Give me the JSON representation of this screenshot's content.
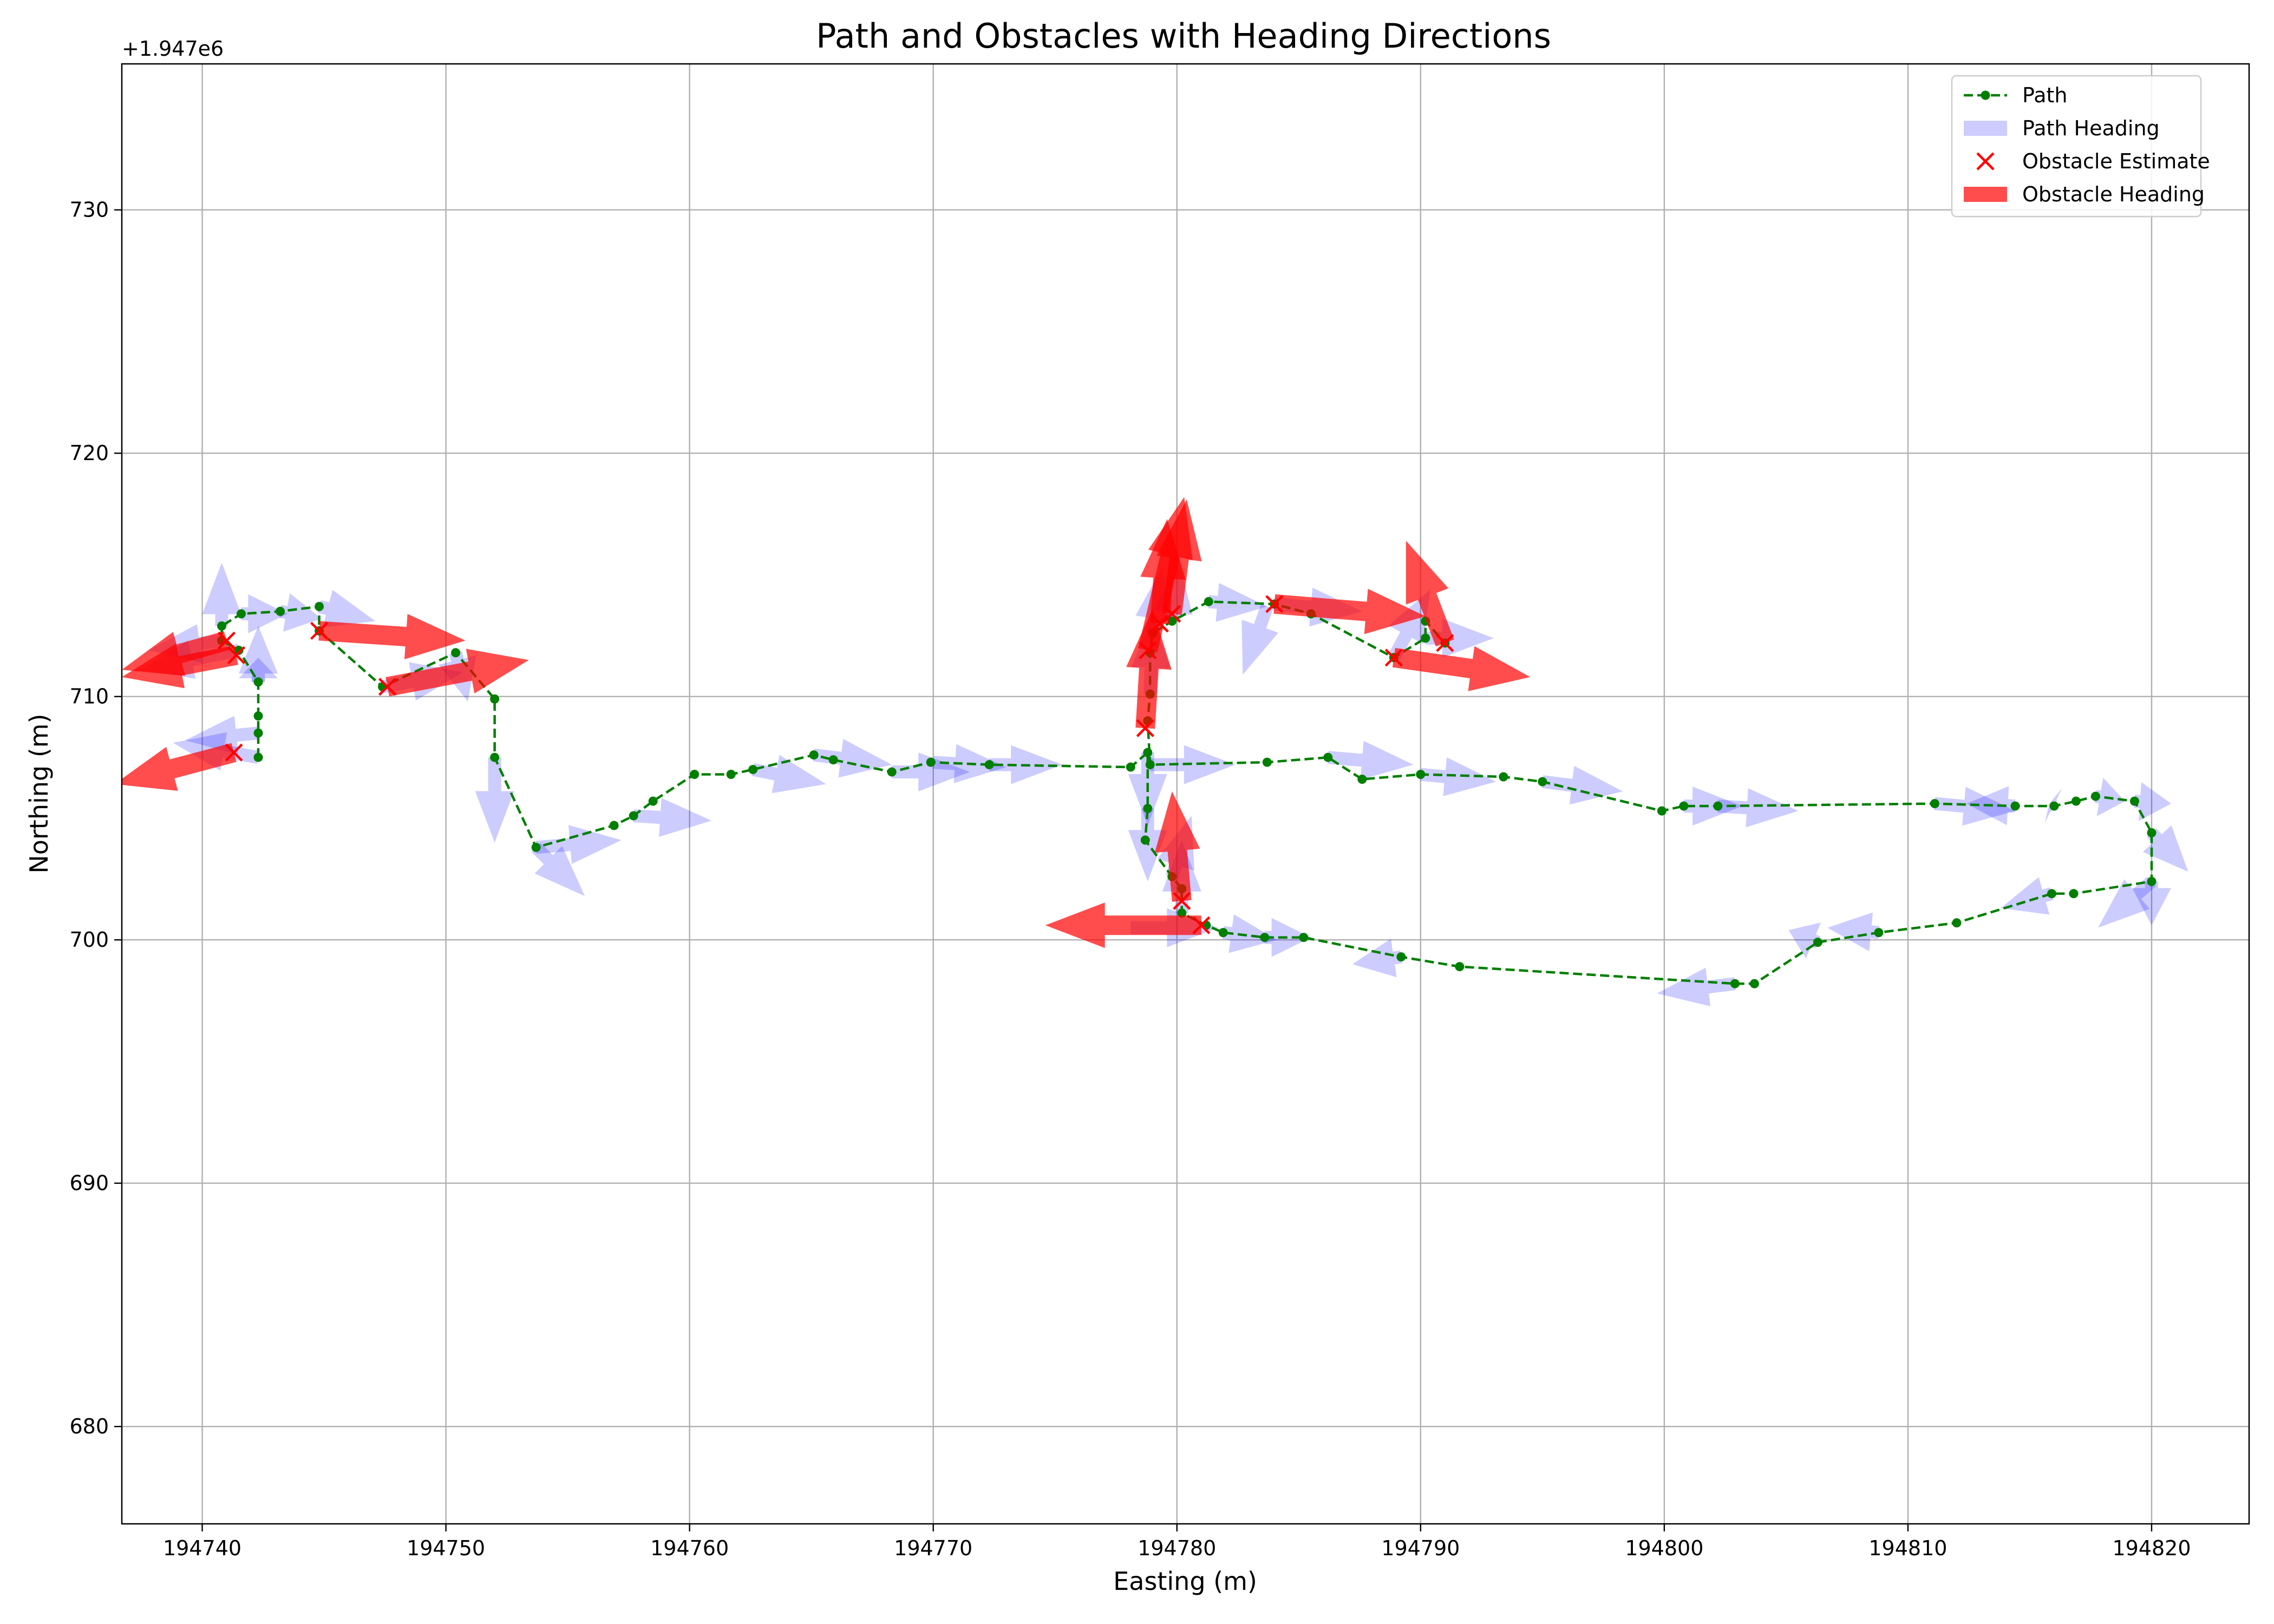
{
  "chart_data": {
    "type": "line",
    "title": "Path and Obstacles with Heading Directions",
    "xlabel": "Easting (m)",
    "ylabel": "Northing (m)",
    "y_offset_label": "+1.947e6",
    "xlim": [
      194736.7,
      194824
    ],
    "ylim": [
      676,
      736
    ],
    "x_ticks": [
      194740,
      194750,
      194760,
      194770,
      194780,
      194790,
      194800,
      194810,
      194820
    ],
    "x_tick_labels": [
      "194740",
      "194750",
      "194760",
      "194770",
      "194780",
      "194790",
      "194800",
      "194810",
      "194820"
    ],
    "y_ticks": [
      680,
      690,
      700,
      710,
      720,
      730
    ],
    "y_tick_labels": [
      "680",
      "690",
      "700",
      "710",
      "720",
      "730"
    ],
    "grid": true,
    "legend_position": "top-right",
    "legend": [
      {
        "label": "Path",
        "kind": "line-marker",
        "color": "#007f00"
      },
      {
        "label": "Path Heading",
        "kind": "patch",
        "color": "#ccccff"
      },
      {
        "label": "Obstacle Estimate",
        "kind": "x-marker",
        "color": "#ff0000"
      },
      {
        "label": "Obstacle Heading",
        "kind": "patch",
        "color": "#ff4d4d"
      }
    ],
    "series": [
      {
        "name": "Path",
        "color": "#007f00",
        "points": [
          [
            194742.3,
            707.5
          ],
          [
            194742.3,
            708.5
          ],
          [
            194742.3,
            709.2
          ],
          [
            194742.3,
            710.6
          ],
          [
            194741.5,
            711.9
          ],
          [
            194740.8,
            712.3
          ],
          [
            194740.8,
            712.9
          ],
          [
            194741.6,
            713.4
          ],
          [
            194743.2,
            713.5
          ],
          [
            194744.8,
            713.7
          ],
          [
            194744.8,
            712.7
          ],
          [
            194747.4,
            710.4
          ],
          [
            194750.4,
            711.8
          ],
          [
            194752.0,
            709.9
          ],
          [
            194752.0,
            707.5
          ],
          [
            194753.7,
            703.8
          ],
          [
            194756.9,
            704.7
          ],
          [
            194757.7,
            705.1
          ],
          [
            194758.5,
            705.7
          ],
          [
            194760.2,
            706.8
          ],
          [
            194761.7,
            706.8
          ],
          [
            194762.6,
            707.0
          ],
          [
            194765.1,
            707.6
          ],
          [
            194765.9,
            707.4
          ],
          [
            194768.3,
            706.9
          ],
          [
            194769.9,
            707.3
          ],
          [
            194772.3,
            707.2
          ],
          [
            194778.1,
            707.1
          ],
          [
            194778.8,
            707.7
          ],
          [
            194778.8,
            705.4
          ],
          [
            194778.7,
            704.1
          ],
          [
            194779.8,
            702.6
          ],
          [
            194780.2,
            702.1
          ],
          [
            194780.2,
            701.1
          ],
          [
            194781.2,
            700.6
          ],
          [
            194781.9,
            700.3
          ],
          [
            194783.6,
            700.1
          ],
          [
            194785.2,
            700.1
          ],
          [
            194789.2,
            699.3
          ],
          [
            194791.6,
            698.9
          ],
          [
            194802.9,
            698.2
          ],
          [
            194803.7,
            698.2
          ],
          [
            194806.3,
            699.9
          ],
          [
            194808.8,
            700.3
          ],
          [
            194812.0,
            700.7
          ],
          [
            194815.9,
            701.9
          ],
          [
            194816.8,
            701.9
          ],
          [
            194820.0,
            702.4
          ],
          [
            194820.0,
            704.4
          ],
          [
            194819.3,
            705.7
          ],
          [
            194817.7,
            705.9
          ],
          [
            194816.9,
            705.7
          ],
          [
            194816.0,
            705.5
          ],
          [
            194814.4,
            705.5
          ],
          [
            194811.1,
            705.6
          ],
          [
            194802.2,
            705.5
          ],
          [
            194800.8,
            705.5
          ],
          [
            194799.9,
            705.3
          ],
          [
            194795.0,
            706.5
          ],
          [
            194793.4,
            706.7
          ],
          [
            194790.0,
            706.8
          ],
          [
            194787.6,
            706.6
          ],
          [
            194786.2,
            707.5
          ],
          [
            194783.7,
            707.3
          ],
          [
            194778.9,
            707.2
          ],
          [
            194778.8,
            709.0
          ],
          [
            194778.9,
            710.1
          ],
          [
            194778.9,
            711.8
          ],
          [
            194779.0,
            712.6
          ],
          [
            194779.8,
            713.1
          ],
          [
            194781.3,
            713.9
          ],
          [
            194784.0,
            713.8
          ],
          [
            194785.5,
            713.4
          ],
          [
            194788.9,
            711.6
          ],
          [
            194790.2,
            712.4
          ],
          [
            194790.2,
            713.1
          ],
          [
            194791.0,
            712.2
          ]
        ]
      }
    ],
    "path_headings": [
      [
        194742.3,
        707.5,
        -3.5,
        0.6
      ],
      [
        194742.3,
        708.5,
        -3.0,
        -0.3
      ],
      [
        194742.3,
        710.6,
        0.0,
        2.3
      ],
      [
        194740.8,
        712.9,
        0.0,
        2.6
      ],
      [
        194741.6,
        713.4,
        1.9,
        0.0
      ],
      [
        194743.2,
        713.5,
        1.7,
        -0.3
      ],
      [
        194744.8,
        713.7,
        2.3,
        -0.6
      ],
      [
        194747.4,
        710.4,
        3.3,
        0.6
      ],
      [
        194750.4,
        711.8,
        0.5,
        -2.0
      ],
      [
        194752.0,
        707.5,
        0.0,
        -3.5
      ],
      [
        194753.7,
        703.8,
        2.0,
        -2.0
      ],
      [
        194753.7,
        703.8,
        3.5,
        0.3
      ],
      [
        194757.7,
        705.1,
        3.2,
        -0.2
      ],
      [
        194762.6,
        707.0,
        3.0,
        -0.6
      ],
      [
        194765.1,
        707.6,
        3.2,
        -0.4
      ],
      [
        194768.3,
        706.9,
        3.2,
        0.0
      ],
      [
        194770.0,
        707.3,
        3.0,
        -0.2
      ],
      [
        194772.3,
        707.2,
        3.0,
        0.0
      ],
      [
        194778.8,
        707.7,
        0.0,
        -3.0
      ],
      [
        194778.8,
        705.4,
        0.0,
        -3.0
      ],
      [
        194779.8,
        702.6,
        0.8,
        2.5
      ],
      [
        194780.2,
        701.1,
        0.0,
        3.0
      ],
      [
        194778.1,
        700.5,
        3.6,
        0.0
      ],
      [
        194781.9,
        700.3,
        2.2,
        -0.3
      ],
      [
        194783.6,
        700.1,
        1.9,
        0.0
      ],
      [
        194789.2,
        699.3,
        -2.0,
        -0.3
      ],
      [
        194802.9,
        698.2,
        -3.2,
        -0.4
      ],
      [
        194806.3,
        699.9,
        -1.2,
        0.5
      ],
      [
        194808.8,
        700.3,
        -2.1,
        0.2
      ],
      [
        194815.9,
        701.9,
        -2.1,
        -0.6
      ],
      [
        194820.0,
        702.4,
        -2.2,
        -1.9
      ],
      [
        194820.0,
        702.4,
        0.0,
        -1.8
      ],
      [
        194820.0,
        704.4,
        1.5,
        -1.6
      ],
      [
        194819.3,
        705.7,
        1.5,
        -0.1
      ],
      [
        194817.7,
        705.9,
        1.2,
        -0.2
      ],
      [
        194816.0,
        705.5,
        -0.2,
        0.1
      ],
      [
        194814.4,
        705.5,
        -2.0,
        0.1
      ],
      [
        194811.1,
        705.6,
        3.3,
        -0.3
      ],
      [
        194802.2,
        705.5,
        3.3,
        -0.2
      ],
      [
        194800.8,
        705.5,
        2.4,
        0.0
      ],
      [
        194795.0,
        706.5,
        3.3,
        -0.4
      ],
      [
        194790.0,
        706.8,
        3.1,
        -0.3
      ],
      [
        194786.2,
        707.5,
        3.5,
        -0.3
      ],
      [
        194778.9,
        707.2,
        3.5,
        0.0
      ],
      [
        194778.9,
        710.1,
        0.1,
        3.2
      ],
      [
        194779.0,
        712.6,
        0.4,
        2.7
      ],
      [
        194779.8,
        713.1,
        0.3,
        2.4
      ],
      [
        194781.3,
        713.9,
        2.4,
        -0.2
      ],
      [
        194783.7,
        713.7,
        -1.0,
        -2.8
      ],
      [
        194784.0,
        713.8,
        3.6,
        -0.3
      ],
      [
        194788.9,
        711.6,
        1.5,
        2.8
      ],
      [
        194790.2,
        712.4,
        2.8,
        0.0
      ],
      [
        194741.5,
        711.9,
        -4.0,
        -0.8
      ],
      [
        194740.8,
        712.3,
        -3.0,
        -0.4
      ],
      [
        194742.3,
        710.6,
        0.0,
        1.0
      ]
    ],
    "obstacle_estimates": [
      [
        194741.0,
        712.3
      ],
      [
        194741.4,
        711.7
      ],
      [
        194744.8,
        712.7
      ],
      [
        194747.6,
        710.4
      ],
      [
        194741.3,
        707.7
      ],
      [
        194778.7,
        708.7
      ],
      [
        194778.8,
        711.9
      ],
      [
        194779.3,
        713.0
      ],
      [
        194779.8,
        713.4
      ],
      [
        194784.0,
        713.8
      ],
      [
        194788.9,
        711.6
      ],
      [
        194791.0,
        712.2
      ],
      [
        194780.2,
        701.6
      ],
      [
        194781.0,
        700.6
      ]
    ],
    "obstacle_headings": [
      [
        194741.0,
        712.3,
        -4.3,
        -1.2
      ],
      [
        194741.4,
        711.7,
        -4.7,
        -0.9
      ],
      [
        194744.8,
        712.7,
        6.0,
        -0.4
      ],
      [
        194747.6,
        710.4,
        5.8,
        1.1
      ],
      [
        194741.3,
        707.7,
        -4.9,
        -1.3
      ],
      [
        194778.7,
        708.7,
        0.3,
        4.9
      ],
      [
        194778.8,
        711.9,
        1.5,
        6.3
      ],
      [
        194779.3,
        713.0,
        0.3,
        4.3
      ],
      [
        194779.8,
        713.4,
        0.6,
        4.7
      ],
      [
        194784.0,
        713.8,
        6.2,
        -0.5
      ],
      [
        194788.9,
        711.6,
        5.6,
        -0.8
      ],
      [
        194791.0,
        712.2,
        -1.6,
        4.2
      ],
      [
        194780.2,
        701.6,
        -0.4,
        4.5
      ],
      [
        194781.0,
        700.6,
        -6.4,
        0.0
      ]
    ]
  }
}
